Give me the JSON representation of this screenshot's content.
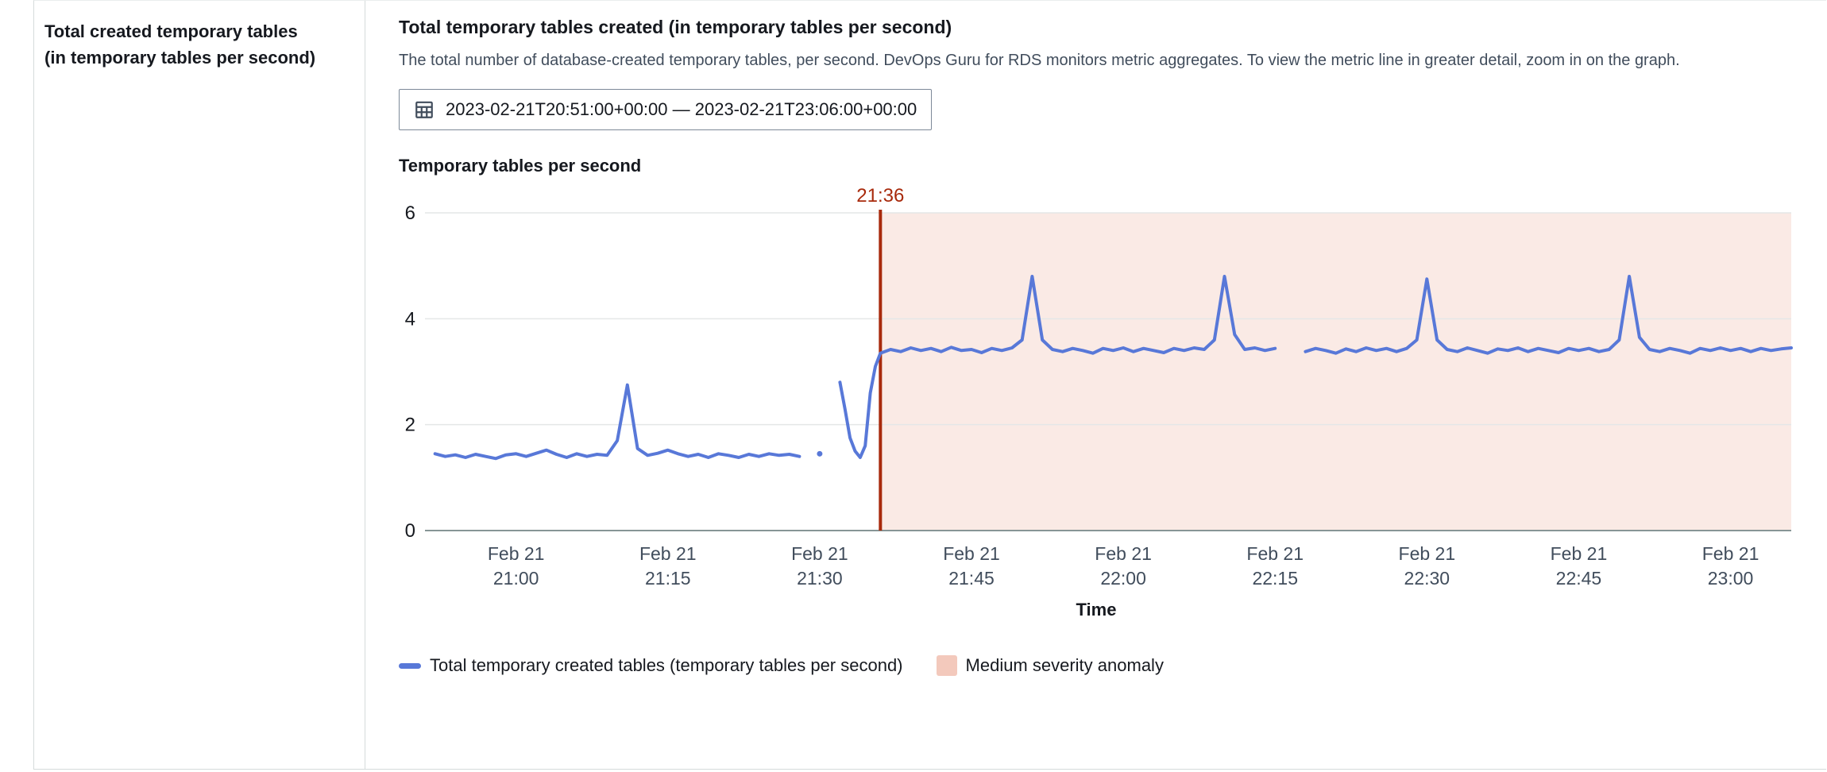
{
  "sidebar": {
    "title": "Total created temporary tables (in temporary tables per second)"
  },
  "main": {
    "title": "Total temporary tables created (in temporary tables per second)",
    "description": "The total number of database-created temporary tables, per second. DevOps Guru for RDS monitors metric aggregates. To view the metric line in greater detail, zoom in on the graph.",
    "time_range": "2023-02-21T20:51:00+00:00 — 2023-02-21T23:06:00+00:00",
    "chart_title": "Temporary tables per second"
  },
  "icons": {
    "calendar": "calendar-icon"
  },
  "colors": {
    "series_blue": "#5878d8",
    "anomaly_red": "#a82a0c",
    "anomaly_region": "#faeae5",
    "anomaly_legend": "#f3c9bc",
    "grid_light": "#e4e7e7",
    "axis_gray": "#879596",
    "tick_text": "#414d5c"
  },
  "chart_data": {
    "type": "line",
    "title": "Temporary tables per second",
    "xlabel": "Time",
    "ylabel": "",
    "ylim": [
      0,
      6
    ],
    "yticks": [
      0,
      2,
      4,
      6
    ],
    "x_unit": "minutes since 2023-02-21T21:00:00+00:00",
    "x_domain": [
      -9,
      126
    ],
    "x_ticks": [
      {
        "minute": 0,
        "label": [
          "Feb 21",
          "21:00"
        ]
      },
      {
        "minute": 15,
        "label": [
          "Feb 21",
          "21:15"
        ]
      },
      {
        "minute": 30,
        "label": [
          "Feb 21",
          "21:30"
        ]
      },
      {
        "minute": 45,
        "label": [
          "Feb 21",
          "21:45"
        ]
      },
      {
        "minute": 60,
        "label": [
          "Feb 21",
          "22:00"
        ]
      },
      {
        "minute": 75,
        "label": [
          "Feb 21",
          "22:15"
        ]
      },
      {
        "minute": 90,
        "label": [
          "Feb 21",
          "22:30"
        ]
      },
      {
        "minute": 105,
        "label": [
          "Feb 21",
          "22:45"
        ]
      },
      {
        "minute": 120,
        "label": [
          "Feb 21",
          "23:00"
        ]
      }
    ],
    "anomaly": {
      "label": "Medium severity anomaly",
      "severity": "Medium",
      "start_label": "21:36",
      "start_minute": 36,
      "region_fill": "#faeae5",
      "line_color": "#a82a0c",
      "legend_fill": "#f3c9bc"
    },
    "legend_position": "bottom",
    "grid": true,
    "series": [
      {
        "name": "Total temporary created tables (temporary tables per second)",
        "color": "#5878d8",
        "segments": [
          [
            [
              -8,
              1.45
            ],
            [
              -7,
              1.4
            ],
            [
              -6,
              1.43
            ],
            [
              -5,
              1.38
            ],
            [
              -4,
              1.44
            ],
            [
              -3,
              1.4
            ],
            [
              -2,
              1.36
            ],
            [
              -1,
              1.43
            ],
            [
              0,
              1.45
            ],
            [
              1,
              1.4
            ],
            [
              2,
              1.46
            ],
            [
              3,
              1.52
            ],
            [
              4,
              1.44
            ],
            [
              5,
              1.38
            ],
            [
              6,
              1.45
            ],
            [
              7,
              1.4
            ],
            [
              8,
              1.44
            ],
            [
              9,
              1.42
            ],
            [
              10,
              1.7
            ],
            [
              11,
              2.75
            ],
            [
              12,
              1.55
            ],
            [
              13,
              1.42
            ],
            [
              14,
              1.46
            ],
            [
              15,
              1.52
            ],
            [
              16,
              1.45
            ],
            [
              17,
              1.4
            ],
            [
              18,
              1.44
            ],
            [
              19,
              1.38
            ],
            [
              20,
              1.45
            ],
            [
              21,
              1.42
            ],
            [
              22,
              1.38
            ],
            [
              23,
              1.44
            ],
            [
              24,
              1.4
            ],
            [
              25,
              1.45
            ],
            [
              26,
              1.42
            ],
            [
              27,
              1.44
            ],
            [
              28,
              1.4
            ]
          ],
          [
            [
              30,
              1.45
            ]
          ],
          [
            [
              32,
              2.8
            ],
            [
              32.5,
              2.3
            ],
            [
              33,
              1.75
            ],
            [
              33.5,
              1.5
            ],
            [
              34,
              1.38
            ],
            [
              34.5,
              1.6
            ],
            [
              35,
              2.6
            ],
            [
              35.5,
              3.1
            ],
            [
              36,
              3.35
            ],
            [
              37,
              3.42
            ],
            [
              38,
              3.38
            ],
            [
              39,
              3.45
            ],
            [
              40,
              3.4
            ],
            [
              41,
              3.44
            ],
            [
              42,
              3.38
            ],
            [
              43,
              3.46
            ],
            [
              44,
              3.4
            ],
            [
              45,
              3.42
            ],
            [
              46,
              3.36
            ],
            [
              47,
              3.44
            ],
            [
              48,
              3.4
            ],
            [
              49,
              3.45
            ],
            [
              50,
              3.6
            ],
            [
              51,
              4.8
            ],
            [
              52,
              3.6
            ],
            [
              53,
              3.42
            ],
            [
              54,
              3.38
            ],
            [
              55,
              3.44
            ],
            [
              56,
              3.4
            ],
            [
              57,
              3.35
            ],
            [
              58,
              3.44
            ],
            [
              59,
              3.4
            ],
            [
              60,
              3.45
            ],
            [
              61,
              3.38
            ],
            [
              62,
              3.44
            ],
            [
              63,
              3.4
            ],
            [
              64,
              3.36
            ],
            [
              65,
              3.44
            ],
            [
              66,
              3.4
            ],
            [
              67,
              3.45
            ],
            [
              68,
              3.42
            ],
            [
              69,
              3.6
            ],
            [
              70,
              4.8
            ],
            [
              71,
              3.7
            ],
            [
              72,
              3.42
            ],
            [
              73,
              3.45
            ],
            [
              74,
              3.4
            ],
            [
              75,
              3.44
            ]
          ],
          [
            [
              78,
              3.38
            ],
            [
              79,
              3.44
            ],
            [
              80,
              3.4
            ],
            [
              81,
              3.35
            ],
            [
              82,
              3.43
            ],
            [
              83,
              3.38
            ],
            [
              84,
              3.45
            ],
            [
              85,
              3.4
            ],
            [
              86,
              3.44
            ],
            [
              87,
              3.38
            ],
            [
              88,
              3.44
            ],
            [
              89,
              3.6
            ],
            [
              90,
              4.75
            ],
            [
              91,
              3.6
            ],
            [
              92,
              3.42
            ],
            [
              93,
              3.38
            ],
            [
              94,
              3.45
            ],
            [
              95,
              3.4
            ],
            [
              96,
              3.35
            ],
            [
              97,
              3.43
            ],
            [
              98,
              3.4
            ],
            [
              99,
              3.45
            ],
            [
              100,
              3.38
            ],
            [
              101,
              3.44
            ],
            [
              102,
              3.4
            ],
            [
              103,
              3.36
            ],
            [
              104,
              3.44
            ],
            [
              105,
              3.4
            ],
            [
              106,
              3.44
            ],
            [
              107,
              3.38
            ],
            [
              108,
              3.42
            ],
            [
              109,
              3.6
            ],
            [
              110,
              4.8
            ],
            [
              111,
              3.65
            ],
            [
              112,
              3.42
            ],
            [
              113,
              3.38
            ],
            [
              114,
              3.44
            ],
            [
              115,
              3.4
            ],
            [
              116,
              3.35
            ],
            [
              117,
              3.44
            ],
            [
              118,
              3.4
            ],
            [
              119,
              3.45
            ],
            [
              120,
              3.4
            ],
            [
              121,
              3.44
            ],
            [
              122,
              3.38
            ],
            [
              123,
              3.44
            ],
            [
              124,
              3.4
            ],
            [
              125,
              3.43
            ],
            [
              126,
              3.45
            ]
          ]
        ]
      }
    ]
  }
}
